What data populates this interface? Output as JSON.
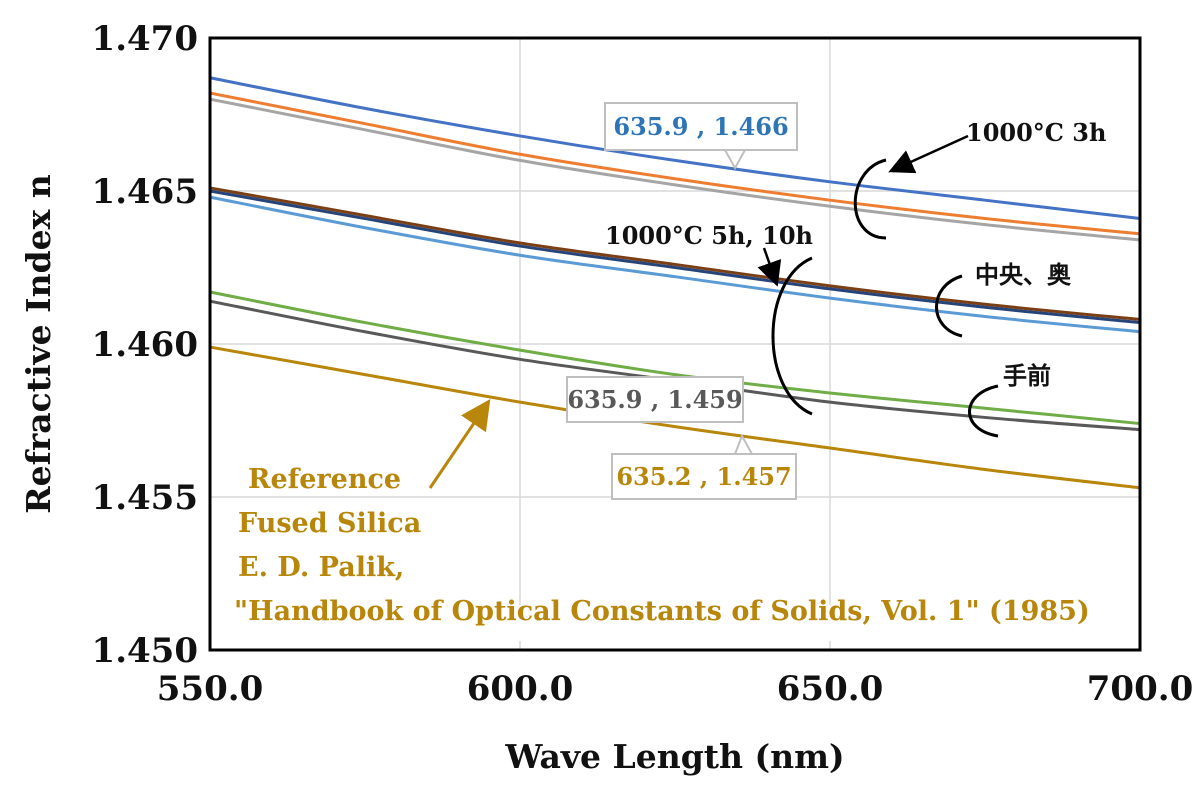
{
  "chart_data": {
    "type": "line",
    "xlabel": "Wave Length (nm)",
    "ylabel": "Refractive Index n",
    "xlim": [
      550,
      700
    ],
    "ylim": [
      1.45,
      1.47
    ],
    "x_ticks": [
      "550.0",
      "600.0",
      "650.0",
      "700.0"
    ],
    "y_ticks": [
      "1.450",
      "1.455",
      "1.460",
      "1.465",
      "1.470"
    ],
    "grid": true,
    "x": [
      550,
      575,
      600,
      625,
      650,
      675,
      700
    ],
    "series": [
      {
        "color": "#4472c4",
        "values": [
          1.4687,
          1.4677,
          1.4668,
          1.466,
          1.4653,
          1.4647,
          1.4641
        ]
      },
      {
        "color": "#ed7d31",
        "values": [
          1.4682,
          1.4672,
          1.4662,
          1.4654,
          1.4647,
          1.4641,
          1.4636
        ]
      },
      {
        "color": "#a5a5a5",
        "values": [
          1.468,
          1.467,
          1.466,
          1.4652,
          1.4645,
          1.4639,
          1.4634
        ]
      },
      {
        "color": "#7b3f16",
        "values": [
          1.4651,
          1.4642,
          1.4633,
          1.4626,
          1.4619,
          1.4613,
          1.4608
        ]
      },
      {
        "color": "#264478",
        "values": [
          1.465,
          1.4641,
          1.4632,
          1.4625,
          1.4618,
          1.4612,
          1.4607
        ]
      },
      {
        "color": "#5b9bd5",
        "values": [
          1.4648,
          1.4638,
          1.4629,
          1.4622,
          1.4615,
          1.4609,
          1.4604
        ]
      },
      {
        "color": "#70ad47",
        "values": [
          1.4617,
          1.4607,
          1.4598,
          1.459,
          1.4584,
          1.4579,
          1.4574
        ]
      },
      {
        "color": "#595959",
        "values": [
          1.4614,
          1.4604,
          1.4595,
          1.4588,
          1.4581,
          1.4576,
          1.4572
        ]
      },
      {
        "color": "#b8860b",
        "values": [
          1.4599,
          1.459,
          1.4581,
          1.4573,
          1.4566,
          1.4559,
          1.4553
        ]
      }
    ]
  },
  "callouts": {
    "c1": "635.9 , 1.466",
    "c2": "635.9 , 1.459",
    "c3": "635.2 , 1.457"
  },
  "annotations": {
    "a1": "1000°C 3h",
    "a2": "1000°C 5h, 10h",
    "a3": "中央、奥",
    "a4": "手前"
  },
  "reference": {
    "line1": "Reference",
    "line2": "Fused Silica",
    "line3": "E. D. Palik,",
    "line4": "\"Handbook of Optical Constants of Solids, Vol. 1\" (1985)"
  },
  "colors": {
    "callout1": "#2e75b6",
    "callout2": "#595959",
    "callout3": "#b8860b",
    "reference": "#b8860b",
    "grid": "#d9d9d9"
  }
}
